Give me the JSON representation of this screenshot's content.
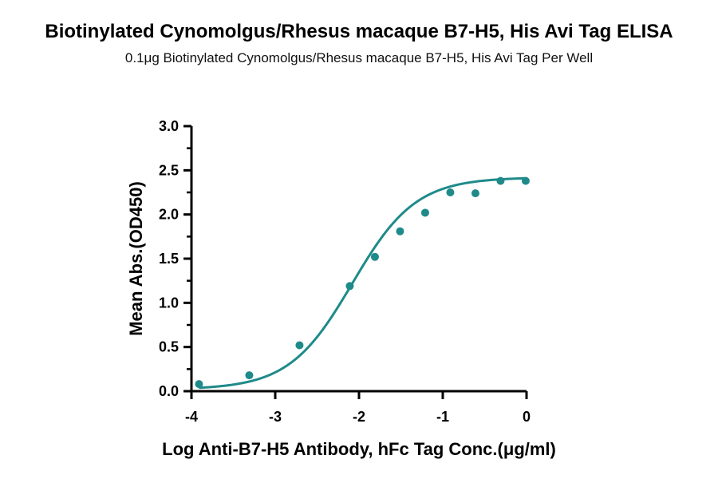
{
  "chart_data": {
    "type": "scatter",
    "title": "Biotinylated Cynomolgus/Rhesus macaque B7-H5, His Avi Tag ELISA",
    "subtitle": "0.1μg Biotinylated Cynomolgus/Rhesus macaque B7-H5, His Avi Tag Per Well",
    "xlabel": "Log Anti-B7-H5 Antibody, hFc Tag Conc.(μg/ml)",
    "ylabel": "Mean Abs.(OD450)",
    "xlim": [
      -4,
      0
    ],
    "ylim": [
      0,
      3
    ],
    "xticks": [
      -4,
      -3,
      -2,
      -1,
      0
    ],
    "yticks": [
      0,
      0.5,
      1,
      1.5,
      2,
      2.5,
      3
    ],
    "xtick_labels": [
      "-4",
      "-3",
      "-2",
      "-1",
      "0"
    ],
    "ytick_labels": [
      "0.0",
      "0.5",
      "1.0",
      "1.5",
      "2.0",
      "2.5",
      "3.0"
    ],
    "grid": false,
    "color": "#1f8a8a",
    "series": [
      {
        "x": [
          -3.91,
          -3.31,
          -2.71,
          -2.11,
          -1.81,
          -1.51,
          -1.21,
          -0.91,
          -0.61,
          -0.31,
          -0.01
        ],
        "y": [
          0.08,
          0.18,
          0.52,
          1.19,
          1.52,
          1.81,
          2.02,
          2.25,
          2.24,
          2.38,
          2.38
        ]
      }
    ],
    "fit": {
      "type": "4PL",
      "bottom": 0.02,
      "top": 2.42,
      "logEC50": -2.08,
      "hill": 1.15
    }
  }
}
